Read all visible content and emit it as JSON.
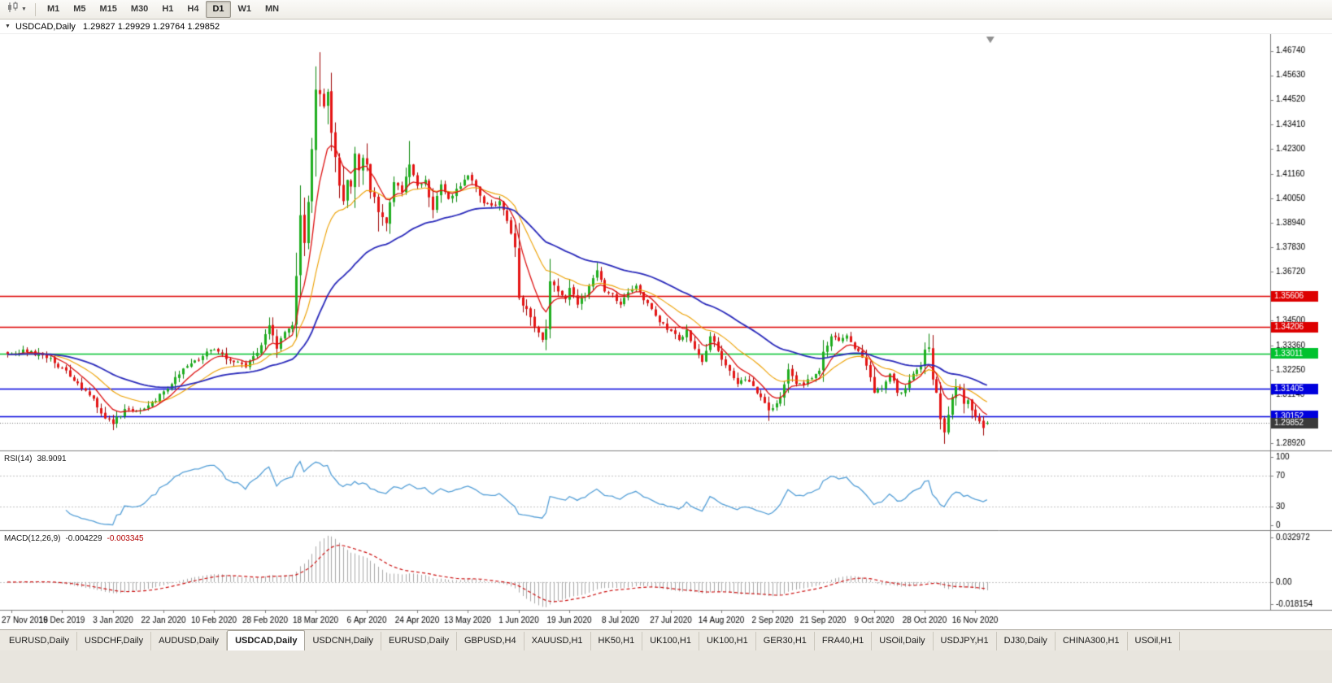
{
  "toolbar": {
    "timeframes": [
      "M1",
      "M5",
      "M15",
      "M30",
      "H1",
      "H4",
      "D1",
      "W1",
      "MN"
    ],
    "active_timeframe": "D1"
  },
  "icons": {
    "chart_type": "candlestick-chart-icon",
    "chart_type_caret": "chevron-down-icon",
    "symbol_caret": "chevron-down-icon",
    "shift_marker": "chart-shift-triangle"
  },
  "chart": {
    "symbol_label": "USDCAD,Daily",
    "open": "1.29827",
    "high": "1.29929",
    "low": "1.29764",
    "close": "1.29852",
    "ohlc_text": "1.29827 1.29929 1.29764 1.29852"
  },
  "indicators": {
    "rsi_label": "RSI(14)",
    "rsi_value": "38.9091",
    "macd_label": "MACD(12,26,9)",
    "macd_value_main": "-0.004229",
    "macd_value_signal": "-0.003345"
  },
  "tabs": {
    "active_index": 3,
    "items": [
      "EURUSD,Daily",
      "USDCHF,Daily",
      "AUDUSD,Daily",
      "USDCAD,Daily",
      "USDCNH,Daily",
      "EURUSD,Daily",
      "GBPUSD,H4",
      "XAUUSD,H1",
      "HK50,H1",
      "UK100,H1",
      "UK100,H1",
      "GER30,H1",
      "FRA40,H1",
      "USOil,Daily",
      "USDJPY,H1",
      "DJ30,Daily",
      "CHINA300,H1",
      "USOil,H1"
    ]
  },
  "chart_data": {
    "type": "candlestick",
    "symbol": "USDCAD",
    "timeframe": "Daily",
    "bar_count": 252,
    "price_range": [
      1.286,
      1.475
    ],
    "y_axis_ticks": [
      "1.46740",
      "1.45630",
      "1.44520",
      "1.43410",
      "1.42300",
      "1.41160",
      "1.40050",
      "1.38940",
      "1.37830",
      "1.36720",
      "1.35600",
      "1.34500",
      "1.33360",
      "1.32250",
      "1.31140",
      "1.30030",
      "1.28920"
    ],
    "x_axis_dates": [
      "27 Nov 2019",
      "16 Dec 2019",
      "3 Jan 2020",
      "22 Jan 2020",
      "10 Feb 2020",
      "28 Feb 2020",
      "18 Mar 2020",
      "6 Apr 2020",
      "24 Apr 2020",
      "13 May 2020",
      "1 Jun 2020",
      "19 Jun 2020",
      "8 Jul 2020",
      "27 Jul 2020",
      "14 Aug 2020",
      "2 Sep 2020",
      "21 Sep 2020",
      "9 Oct 2020",
      "28 Oct 2020",
      "16 Nov 2020"
    ],
    "first_date_bar": 1,
    "date_step_bars": 13,
    "close_anchors": [
      [
        1,
        1.33
      ],
      [
        4,
        1.3318
      ],
      [
        9,
        1.3292
      ],
      [
        14,
        1.3235
      ],
      [
        18,
        1.3165
      ],
      [
        22,
        1.3095
      ],
      [
        25,
        1.3005
      ],
      [
        27,
        1.298
      ],
      [
        30,
        1.3048
      ],
      [
        34,
        1.3042
      ],
      [
        38,
        1.3085
      ],
      [
        40,
        1.3128
      ],
      [
        44,
        1.3205
      ],
      [
        47,
        1.3255
      ],
      [
        50,
        1.3288
      ],
      [
        53,
        1.3318
      ],
      [
        57,
        1.3268
      ],
      [
        61,
        1.3238
      ],
      [
        63,
        1.3288
      ],
      [
        65,
        1.3338
      ],
      [
        66,
        1.3388
      ],
      [
        67,
        1.3428
      ],
      [
        69,
        1.3322
      ],
      [
        71,
        1.3398
      ],
      [
        73,
        1.3428
      ],
      [
        74,
        1.3652
      ],
      [
        75,
        1.3928
      ],
      [
        76,
        1.3802
      ],
      [
        77,
        1.3988
      ],
      [
        78,
        1.4228
      ],
      [
        79,
        1.4498
      ],
      [
        80,
        1.4478
      ],
      [
        81,
        1.4422
      ],
      [
        82,
        1.4488
      ],
      [
        83,
        1.4302
      ],
      [
        84,
        1.4192
      ],
      [
        85,
        1.4062
      ],
      [
        86,
        1.3992
      ],
      [
        87,
        1.4088
      ],
      [
        88,
        1.4058
      ],
      [
        89,
        1.4208
      ],
      [
        90,
        1.4132
      ],
      [
        91,
        1.4188
      ],
      [
        92,
        1.4158
      ],
      [
        93,
        1.4032
      ],
      [
        95,
        1.3942
      ],
      [
        97,
        1.3892
      ],
      [
        99,
        1.4078
      ],
      [
        101,
        1.4032
      ],
      [
        103,
        1.4158
      ],
      [
        105,
        1.4062
      ],
      [
        107,
        1.4088
      ],
      [
        109,
        1.3952
      ],
      [
        111,
        1.4068
      ],
      [
        113,
        1.4002
      ],
      [
        115,
        1.4048
      ],
      [
        118,
        1.4108
      ],
      [
        120,
        1.4058
      ],
      [
        122,
        1.3982
      ],
      [
        124,
        1.3972
      ],
      [
        126,
        1.3992
      ],
      [
        128,
        1.3902
      ],
      [
        130,
        1.3782
      ],
      [
        131,
        1.3552
      ],
      [
        133,
        1.3502
      ],
      [
        135,
        1.3422
      ],
      [
        137,
        1.3362
      ],
      [
        138,
        1.3412
      ],
      [
        139,
        1.3628
      ],
      [
        141,
        1.3582
      ],
      [
        143,
        1.3548
      ],
      [
        144,
        1.3598
      ],
      [
        146,
        1.3522
      ],
      [
        148,
        1.3562
      ],
      [
        150,
        1.3642
      ],
      [
        151,
        1.3678
      ],
      [
        153,
        1.3582
      ],
      [
        155,
        1.3572
      ],
      [
        157,
        1.3522
      ],
      [
        159,
        1.3578
      ],
      [
        161,
        1.3608
      ],
      [
        163,
        1.3542
      ],
      [
        165,
        1.3502
      ],
      [
        167,
        1.3442
      ],
      [
        170,
        1.3402
      ],
      [
        172,
        1.3362
      ],
      [
        174,
        1.3408
      ],
      [
        176,
        1.3322
      ],
      [
        178,
        1.3262
      ],
      [
        180,
        1.3378
      ],
      [
        182,
        1.3312
      ],
      [
        183,
        1.3272
      ],
      [
        185,
        1.3222
      ],
      [
        187,
        1.3162
      ],
      [
        189,
        1.3182
      ],
      [
        191,
        1.3152
      ],
      [
        193,
        1.3102
      ],
      [
        195,
        1.3042
      ],
      [
        196,
        1.3052
      ],
      [
        198,
        1.3102
      ],
      [
        200,
        1.3228
      ],
      [
        202,
        1.3162
      ],
      [
        204,
        1.3158
      ],
      [
        206,
        1.3188
      ],
      [
        208,
        1.3222
      ],
      [
        209,
        1.3308
      ],
      [
        211,
        1.3378
      ],
      [
        213,
        1.3358
      ],
      [
        215,
        1.3382
      ],
      [
        217,
        1.3322
      ],
      [
        219,
        1.3282
      ],
      [
        221,
        1.3192
      ],
      [
        222,
        1.3122
      ],
      [
        224,
        1.3142
      ],
      [
        226,
        1.3208
      ],
      [
        228,
        1.3122
      ],
      [
        230,
        1.3142
      ],
      [
        232,
        1.3208
      ],
      [
        234,
        1.3242
      ],
      [
        235,
        1.3318
      ],
      [
        236,
        1.3328
      ],
      [
        237,
        1.3182
      ],
      [
        238,
        1.3122
      ],
      [
        239,
        1.3002
      ],
      [
        240,
        1.2942
      ],
      [
        241,
        1.3022
      ],
      [
        242,
        1.3102
      ],
      [
        243,
        1.3148
      ],
      [
        244,
        1.3138
      ],
      [
        245,
        1.3072
      ],
      [
        246,
        1.3088
      ],
      [
        247,
        1.3042
      ],
      [
        248,
        1.3012
      ],
      [
        249,
        1.2992
      ],
      [
        250,
        1.2962
      ],
      [
        251,
        1.29852
      ]
    ],
    "forced_extremes": {
      "high": [
        [
          67,
          1.3464
        ],
        [
          74,
          1.3758
        ],
        [
          80,
          1.4668
        ],
        [
          103,
          1.4265
        ],
        [
          151,
          1.3712
        ],
        [
          236,
          1.339
        ]
      ],
      "low": [
        [
          27,
          1.2952
        ],
        [
          97,
          1.3855
        ],
        [
          138,
          1.3315
        ],
        [
          195,
          1.2994
        ],
        [
          240,
          1.289
        ],
        [
          250,
          1.2928
        ]
      ]
    },
    "last_bar_ohlc": [
      1.29827,
      1.29929,
      1.29764,
      1.29852
    ],
    "moving_averages": [
      {
        "name": "ma-fast",
        "period": 8,
        "color": "#dd1111"
      },
      {
        "name": "ma-mid",
        "period": 20,
        "color": "#eda000"
      },
      {
        "name": "ma-slow",
        "period": 48,
        "color": "#2b2bbb"
      }
    ],
    "key_levels": [
      {
        "value": 1.35606,
        "label": "1.35606",
        "color": "#dd0000"
      },
      {
        "value": 1.34206,
        "label": "1.34206",
        "color": "#dd0000"
      },
      {
        "value": 1.33011,
        "label": "1.33011",
        "color": "#00c22e"
      },
      {
        "value": 1.31405,
        "label": "1.31405",
        "color": "#0000dd"
      },
      {
        "value": 1.30152,
        "label": "1.30152",
        "color": "#0000dd"
      }
    ],
    "current_price": {
      "value": 1.29852,
      "label": "1.29852",
      "color": "#3a3a3a"
    },
    "rsi": {
      "period": 14,
      "current": 38.9091,
      "range": [
        0,
        100
      ],
      "levels": [
        70,
        30
      ],
      "axis_labels": [
        [
          "100",
          100
        ],
        [
          "70",
          70
        ],
        [
          "30",
          30
        ],
        [
          "0",
          0
        ]
      ],
      "color": "#549fd7"
    },
    "macd": {
      "fast": 12,
      "slow": 26,
      "signal": 9,
      "current_macd": -0.004229,
      "current_signal": -0.003345,
      "range": [
        -0.0185,
        0.0335
      ],
      "axis_labels": [
        [
          "0.032972",
          0.032972
        ],
        [
          "0.00",
          0.0
        ],
        [
          "-0.018154",
          -0.018154
        ]
      ],
      "hist_color": "#a8a8a8",
      "signal_color": "#cc1111"
    },
    "colors": {
      "up_fill": "#1fae1f",
      "up_edge": "#0c870c",
      "down_fill": "#e51414",
      "down_edge": "#9e0505",
      "axis_line": "#808080",
      "text": "#000000",
      "bid_line": "#777777",
      "shift_marker": "#909090"
    }
  }
}
